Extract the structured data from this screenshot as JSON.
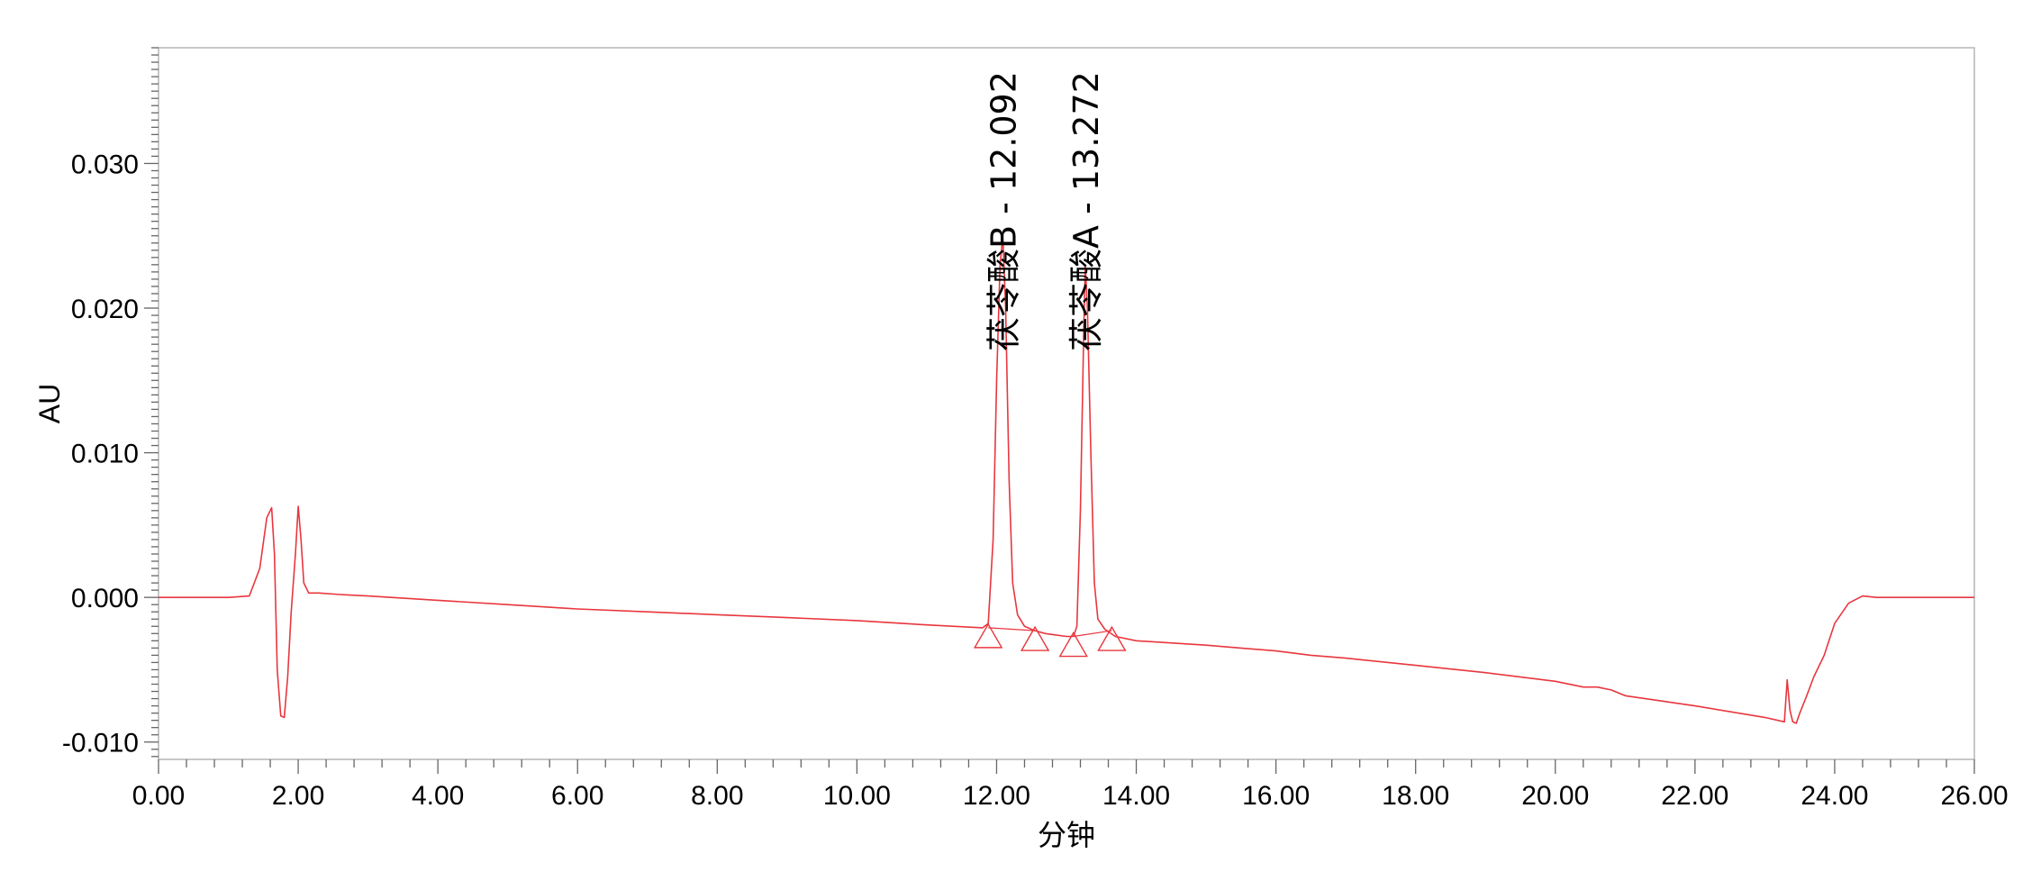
{
  "chart_data": {
    "type": "line",
    "xlabel": "分钟",
    "ylabel": "AU",
    "xlim": [
      0,
      26
    ],
    "ylim": [
      -0.0112,
      0.038
    ],
    "x_ticks": [
      {
        "value": 0,
        "label": "0.00"
      },
      {
        "value": 2,
        "label": "2.00"
      },
      {
        "value": 4,
        "label": "4.00"
      },
      {
        "value": 6,
        "label": "6.00"
      },
      {
        "value": 8,
        "label": "8.00"
      },
      {
        "value": 10,
        "label": "10.00"
      },
      {
        "value": 12,
        "label": "12.00"
      },
      {
        "value": 14,
        "label": "14.00"
      },
      {
        "value": 16,
        "label": "16.00"
      },
      {
        "value": 18,
        "label": "18.00"
      },
      {
        "value": 20,
        "label": "20.00"
      },
      {
        "value": 22,
        "label": "22.00"
      },
      {
        "value": 24,
        "label": "24.00"
      },
      {
        "value": 26,
        "label": "26.00"
      }
    ],
    "y_ticks": [
      {
        "value": -0.01,
        "label": "-0.010"
      },
      {
        "value": 0.0,
        "label": "0.000"
      },
      {
        "value": 0.01,
        "label": "0.010"
      },
      {
        "value": 0.02,
        "label": "0.020"
      },
      {
        "value": 0.03,
        "label": "0.030"
      }
    ],
    "grid": false,
    "line_color": "#e8373e",
    "series": [
      {
        "x": [
          0.0,
          0.5,
          1.0,
          1.3,
          1.45,
          1.55,
          1.62,
          1.66,
          1.7,
          1.75,
          1.8,
          1.85,
          1.9,
          1.96,
          2.0,
          2.04,
          2.08,
          2.15,
          2.3,
          2.6,
          3.0,
          4.0,
          5.0,
          6.0,
          7.0,
          8.0,
          9.0,
          10.0,
          11.0,
          11.8,
          11.88,
          11.95,
          12.0,
          12.05,
          12.09,
          12.13,
          12.18,
          12.23,
          12.3,
          12.4,
          12.55,
          12.7,
          12.85,
          13.0,
          13.1,
          13.15,
          13.2,
          13.25,
          13.27,
          13.3,
          13.35,
          13.4,
          13.45,
          13.55,
          13.7,
          14.0,
          15.0,
          15.5,
          16.0,
          16.5,
          17.0,
          18.0,
          19.0,
          20.0,
          20.4,
          20.6,
          20.8,
          21.0,
          22.0,
          23.0,
          23.28,
          23.32,
          23.36,
          23.4,
          23.45,
          23.5,
          23.6,
          23.7,
          23.85,
          24.0,
          24.2,
          24.4,
          24.6,
          25.0,
          25.5,
          26.0
        ],
        "y": [
          0.0,
          0.0,
          0.0,
          0.0001,
          0.002,
          0.0055,
          0.0062,
          0.003,
          -0.005,
          -0.0082,
          -0.0083,
          -0.0055,
          -0.001,
          0.003,
          0.0063,
          0.004,
          0.001,
          0.0003,
          0.0003,
          0.0002,
          0.0001,
          -0.0002,
          -0.0005,
          -0.0008,
          -0.001,
          -0.0012,
          -0.0014,
          -0.0016,
          -0.0019,
          -0.0021,
          -0.0018,
          0.004,
          0.015,
          0.023,
          0.025,
          0.02,
          0.008,
          0.001,
          -0.0012,
          -0.002,
          -0.0023,
          -0.0025,
          -0.0026,
          -0.0027,
          -0.0027,
          -0.002,
          0.006,
          0.019,
          0.023,
          0.02,
          0.01,
          0.001,
          -0.0015,
          -0.0022,
          -0.0027,
          -0.003,
          -0.0033,
          -0.0035,
          -0.0037,
          -0.004,
          -0.0042,
          -0.0047,
          -0.0052,
          -0.0058,
          -0.0062,
          -0.0062,
          -0.0064,
          -0.0068,
          -0.0075,
          -0.0083,
          -0.0086,
          -0.0057,
          -0.0078,
          -0.0086,
          -0.0087,
          -0.008,
          -0.0068,
          -0.0055,
          -0.004,
          -0.0018,
          -0.0004,
          0.0001,
          0.0,
          0.0,
          0.0,
          0.0
        ]
      }
    ],
    "peaks": [
      {
        "name": "茯苓酸B",
        "rt": 12.092,
        "label": "茯苓酸B - 12.092",
        "start": 11.88,
        "end": 12.55,
        "start_y": -0.0021,
        "end_y": -0.0023
      },
      {
        "name": "茯苓酸A",
        "rt": 13.272,
        "label": "茯苓酸A - 13.272",
        "start": 13.1,
        "end": 13.65,
        "start_y": -0.0027,
        "end_y": -0.0023
      }
    ]
  }
}
